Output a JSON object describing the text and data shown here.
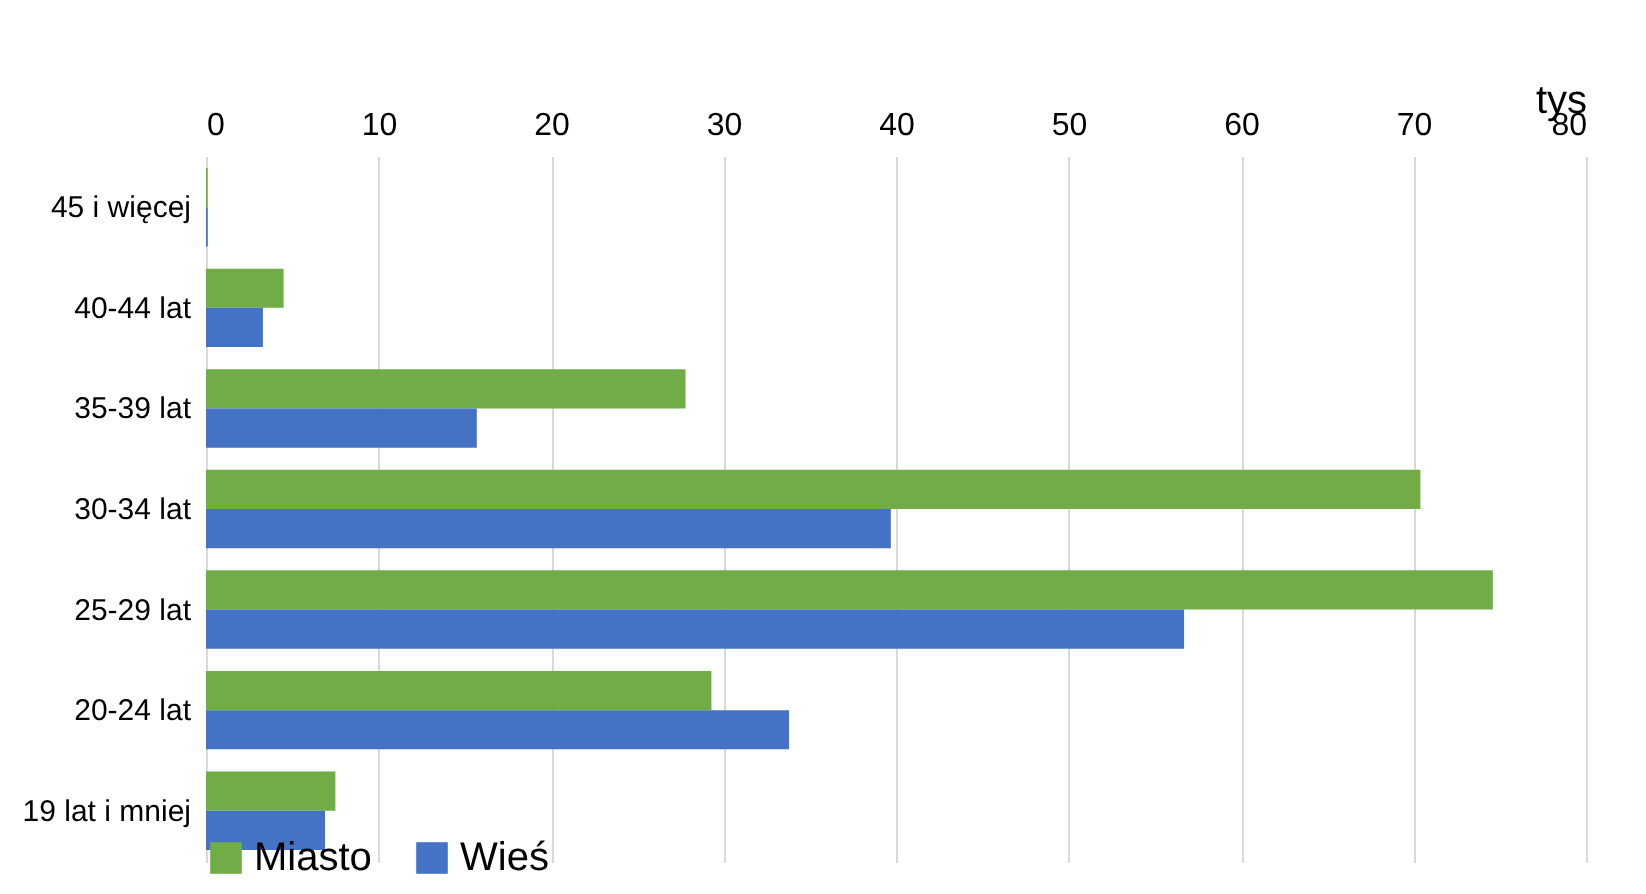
{
  "chart_data": {
    "type": "bar",
    "orientation": "horizontal",
    "xlabel": "tys",
    "categories": [
      "45 i więcej",
      "40-44 lat",
      "35-39 lat",
      "30-34 lat",
      "25-29 lat",
      "20-24 lat",
      "19 lat i mniej"
    ],
    "series": [
      {
        "name": "Miasto",
        "color": "#70ad47",
        "values": [
          0.1,
          4.5,
          27.8,
          70.4,
          74.6,
          29.3,
          7.5
        ]
      },
      {
        "name": "Wieś",
        "color": "#4472c4",
        "values": [
          0.1,
          3.3,
          15.7,
          39.7,
          56.7,
          33.8,
          6.9
        ]
      }
    ],
    "xlim": [
      0,
      80
    ],
    "xticks": [
      0,
      10,
      20,
      30,
      40,
      50,
      60,
      70,
      80
    ],
    "grid": "x",
    "legend": "bottom"
  }
}
